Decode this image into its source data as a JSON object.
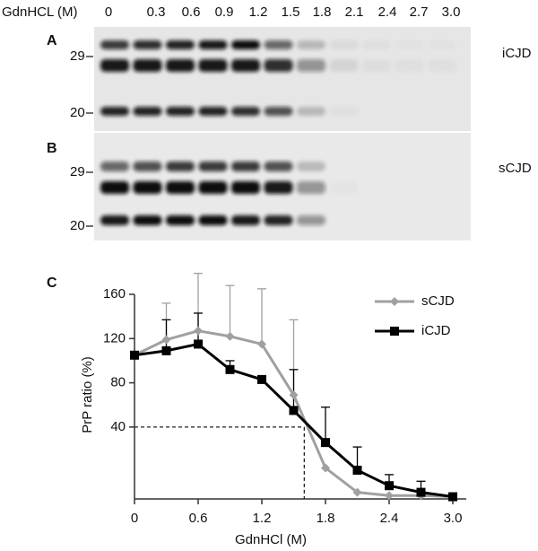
{
  "blot": {
    "header_label": "GdnHCL (M)",
    "concentrations": [
      "0",
      "0.3",
      "0.6",
      "0.9",
      "1.2",
      "1.5",
      "1.8",
      "2.1",
      "2.4",
      "2.7",
      "3.0"
    ],
    "panels": [
      {
        "letter": "A",
        "markers": [
          "29",
          "20"
        ],
        "sample": "iCJD"
      },
      {
        "letter": "B",
        "markers": [
          "29",
          "20"
        ],
        "sample": "sCJD"
      }
    ]
  },
  "chart_data": {
    "type": "line",
    "panel_letter": "C",
    "x_label": "GdnHCl (M)",
    "y_label": "PrP ratio (%)",
    "x": [
      0,
      0.3,
      0.6,
      0.9,
      1.2,
      1.5,
      1.8,
      2.1,
      2.4,
      2.7,
      3.0
    ],
    "series": [
      {
        "name": "sCJD",
        "color": "#a0a0a0",
        "marker": "diamond",
        "values": [
          105,
          119,
          127,
          122,
          115,
          69,
          3,
          -19,
          -22,
          -22,
          -23
        ],
        "errors": [
          null,
          33,
          52,
          46,
          50,
          68,
          null,
          null,
          null,
          null,
          null
        ]
      },
      {
        "name": "iCJD",
        "color": "#000000",
        "marker": "square",
        "values": [
          105,
          109,
          115,
          92,
          83,
          55,
          26,
          1,
          -13,
          -19,
          -23
        ],
        "errors": [
          null,
          28,
          28,
          8,
          null,
          37,
          32,
          21,
          10,
          10,
          null
        ]
      }
    ],
    "reference": {
      "x": 1.6,
      "y": 40
    },
    "xlim": [
      0,
      3.0
    ],
    "ylim": [
      -25,
      160
    ],
    "xticks": [
      0,
      0.6,
      1.2,
      1.8,
      2.4,
      {
        "value": 3.0,
        "label": "3.0"
      }
    ],
    "yticks": [
      40,
      80,
      120,
      160
    ],
    "legend": "upper right"
  }
}
